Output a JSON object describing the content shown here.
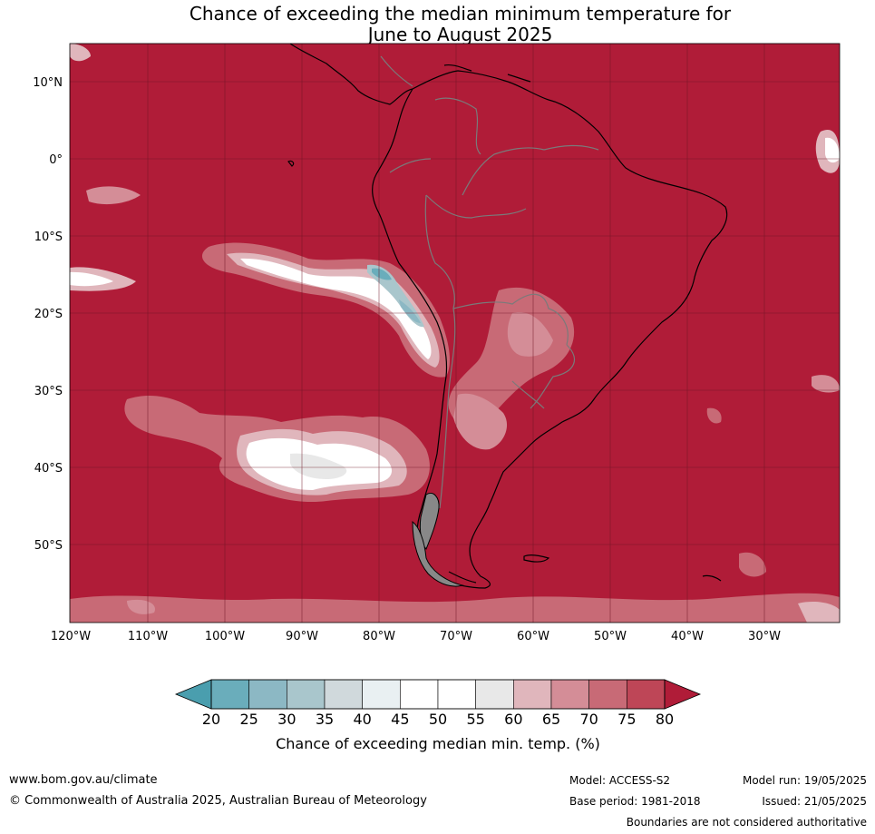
{
  "title": {
    "line1": "Chance of exceeding the median minimum temperature for",
    "line2": "June to August 2025"
  },
  "map": {
    "region": "South America",
    "lat_labels": [
      "10°N",
      "0°",
      "10°S",
      "20°S",
      "30°S",
      "40°S",
      "50°S"
    ],
    "lon_labels": [
      "120°W",
      "110°W",
      "100°W",
      "90°W",
      "80°W",
      "70°W",
      "60°W",
      "50°W",
      "40°W",
      "30°W"
    ],
    "background_color": "#b01c38"
  },
  "colorbar": {
    "ticks": [
      "20",
      "25",
      "30",
      "35",
      "40",
      "45",
      "50",
      "55",
      "60",
      "65",
      "70",
      "75",
      "80"
    ],
    "colors": [
      "#6aadbb",
      "#8cb8c4",
      "#a9c6cc",
      "#d0d9dc",
      "#e9f0f2",
      "#ffffff",
      "#ffffff",
      "#e8e8e8",
      "#e0b6bc",
      "#d48d97",
      "#c86a76",
      "#be4657"
    ],
    "low_extend_color": "#4a9eae",
    "high_extend_color": "#b01c38",
    "label": "Chance of exceeding median min. temp. (%)"
  },
  "footer": {
    "url": "www.bom.gov.au/climate",
    "copyright": "© Commonwealth of Australia 2025, Australian Bureau of Meteorology",
    "model": "Model: ACCESS-S2",
    "base_period": "Base period: 1981-2018",
    "model_run": "Model run: 19/05/2025",
    "issued": "Issued: 21/05/2025",
    "disclaimer": "Boundaries are not considered authoritative"
  }
}
